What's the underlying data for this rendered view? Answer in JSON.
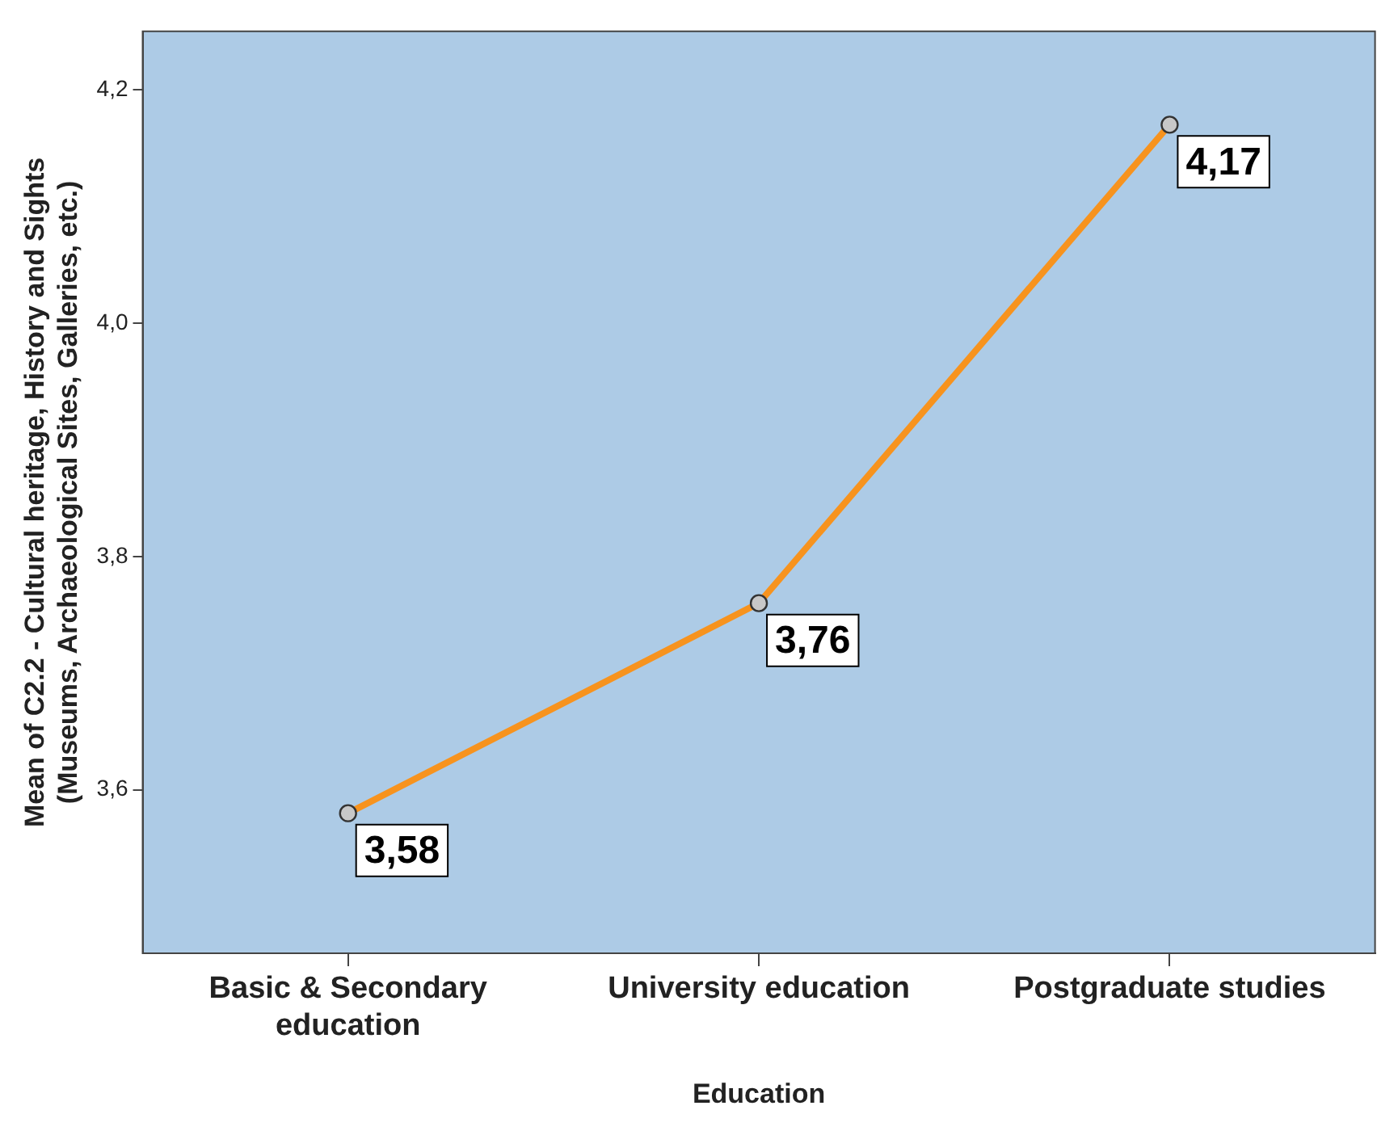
{
  "chart_data": {
    "type": "line",
    "xlabel": "Education",
    "ylabel": "Mean of C2.2 - Cultural heritage, History and Sights\n(Museums, Archaeological Sites, Galleries, etc.)",
    "categories": [
      "Basic & Secondary\neducation",
      "University education",
      "Postgraduate studies"
    ],
    "series": [
      {
        "color": "#f7931e",
        "values": [
          3.58,
          3.76,
          4.17
        ],
        "value_labels": [
          "3,58",
          "3,76",
          "4,17"
        ]
      }
    ],
    "ylim": [
      3.46,
      4.25
    ],
    "yticks": [
      {
        "value": 3.6,
        "label": "3,6"
      },
      {
        "value": 3.8,
        "label": "3,8"
      },
      {
        "value": 4.0,
        "label": "4,0"
      },
      {
        "value": 4.2,
        "label": "4,2"
      }
    ],
    "grid": false,
    "legend": false,
    "marker": "circle",
    "line_style": "solid"
  }
}
